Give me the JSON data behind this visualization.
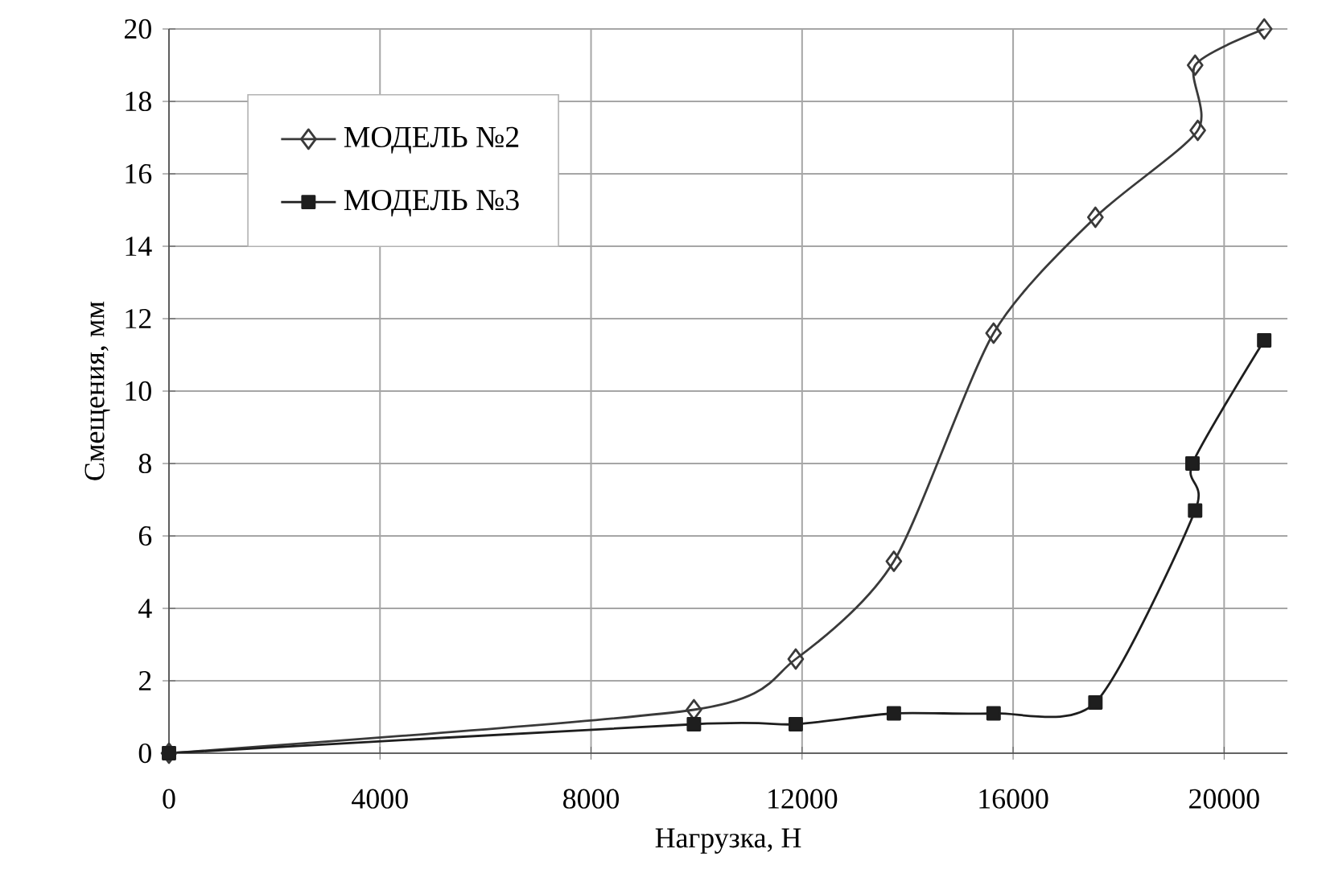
{
  "chart_data": {
    "type": "line",
    "xlabel": "Нагрузка, Н",
    "ylabel": "Смещения, мм",
    "xlim": [
      0,
      21200
    ],
    "ylim": [
      0,
      20
    ],
    "xticks": [
      0,
      4000,
      8000,
      12000,
      16000,
      20000
    ],
    "yticks": [
      0,
      2,
      4,
      6,
      8,
      10,
      12,
      14,
      16,
      18,
      20
    ],
    "grid": true,
    "legend": "top left",
    "series": [
      {
        "name": "МОДЕЛЬ №2",
        "color": "#3a3a3a",
        "marker": "diamond",
        "x": [
          0,
          9950,
          11880,
          13740,
          15630,
          17560,
          19500,
          19450,
          20760
        ],
        "values": [
          0,
          1.2,
          2.6,
          5.3,
          11.6,
          14.8,
          17.2,
          19,
          20
        ]
      },
      {
        "name": "МОДЕЛЬ №3",
        "color": "#1e1e1e",
        "marker": "square",
        "x": [
          0,
          9950,
          11880,
          13740,
          15630,
          17560,
          19450,
          19400,
          20760
        ],
        "values": [
          0,
          0.8,
          0.8,
          1.1,
          1.1,
          1.4,
          6.7,
          8,
          11.4
        ]
      }
    ]
  }
}
